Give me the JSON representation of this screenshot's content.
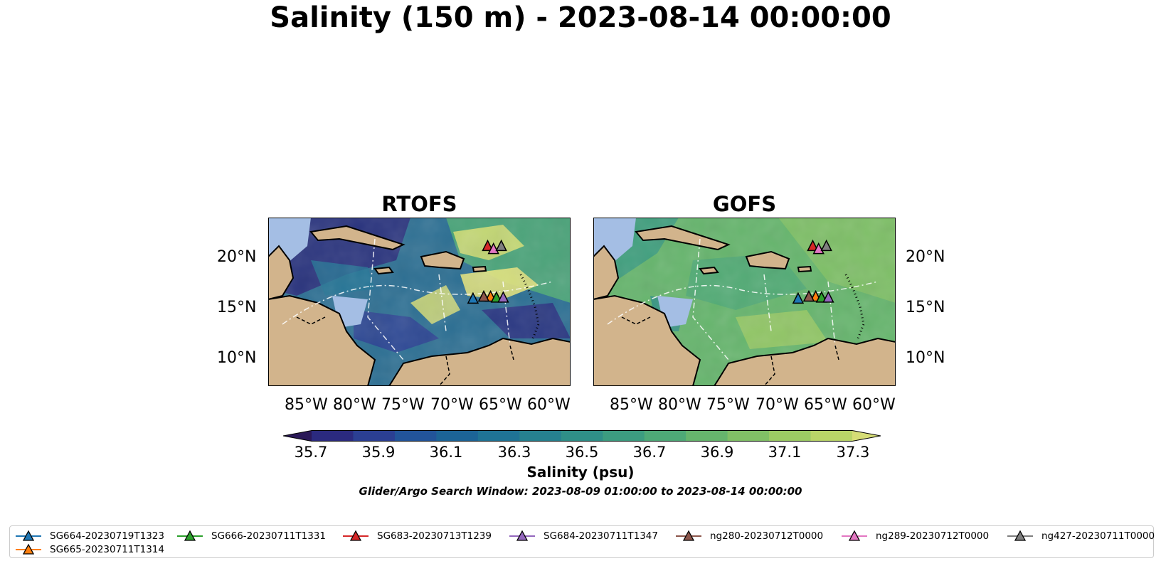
{
  "title": "Salinity (150 m) - 2023-08-14 00:00:00",
  "panels": [
    {
      "title": "RTOFS"
    },
    {
      "title": "GOFS"
    }
  ],
  "lat_ticks": [
    "20°N",
    "15°N",
    "10°N"
  ],
  "lon_ticks": [
    "85°W",
    "80°W",
    "75°W",
    "70°W",
    "65°W",
    "60°W"
  ],
  "colorbar": {
    "ticks": [
      "35.7",
      "35.9",
      "36.1",
      "36.3",
      "36.5",
      "36.7",
      "36.9",
      "37.1",
      "37.3"
    ],
    "label": "Salinity (psu)",
    "colors": [
      "#2a1858",
      "#2b2a7f",
      "#2b3f93",
      "#22549a",
      "#1c6497",
      "#1f7395",
      "#26818f",
      "#2f8f88",
      "#3c9c80",
      "#4ea977",
      "#66b56d",
      "#81c066",
      "#9ccb64",
      "#b9d468",
      "#d6dd76"
    ]
  },
  "search_window": "Glider/Argo Search Window: 2023-08-09 01:00:00 to 2023-08-14 00:00:00",
  "legend": [
    {
      "label": "SG664-20230719T1323",
      "color": "#1f77b4"
    },
    {
      "label": "SG665-20230711T1314",
      "color": "#ff7f0e"
    },
    {
      "label": "SG666-20230711T1331",
      "color": "#2ca02c"
    },
    {
      "label": "SG683-20230713T1239",
      "color": "#d62728"
    },
    {
      "label": "SG684-20230711T1347",
      "color": "#9467bd"
    },
    {
      "label": "ng280-20230712T0000",
      "color": "#8c564b"
    },
    {
      "label": "ng289-20230712T0000",
      "color": "#e377c2"
    },
    {
      "label": "ng427-20230711T0000",
      "color": "#7f7f7f"
    }
  ],
  "glider_markers": [
    {
      "glider": "SG664-20230719T1323",
      "lon": -68.0,
      "lat": 15.8
    },
    {
      "glider": "SG665-20230711T1314",
      "lon": -66.2,
      "lat": 16.0
    },
    {
      "glider": "SG666-20230711T1331",
      "lon": -65.6,
      "lat": 15.9
    },
    {
      "glider": "SG683-20230713T1239",
      "lon": -66.5,
      "lat": 21.1
    },
    {
      "glider": "SG684-20230711T1347",
      "lon": -64.9,
      "lat": 15.9
    },
    {
      "glider": "ng280-20230712T0000",
      "lon": -66.9,
      "lat": 16.0
    },
    {
      "glider": "ng289-20230712T0000",
      "lon": -65.9,
      "lat": 20.8
    },
    {
      "glider": "ng427-20230711T0000",
      "lon": -65.1,
      "lat": 21.1
    }
  ],
  "map_extent": {
    "lon": [
      -89,
      -58
    ],
    "lat": [
      7,
      24
    ]
  },
  "colors": {
    "land": "#d2b48c",
    "shelf": "#a4bee4",
    "coast": "#000000"
  }
}
